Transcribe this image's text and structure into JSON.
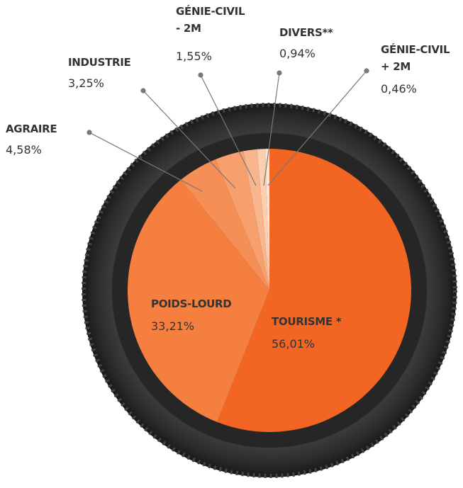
{
  "chart_data": {
    "type": "pie",
    "categories": [
      "TOURISME *",
      "POIDS-LOURD",
      "AGRAIRE",
      "INDUSTRIE",
      "GÉNIE-CIVIL\n- 2M",
      "DIVERS**",
      "GÉNIE-CIVIL\n+ 2M"
    ],
    "values": [
      56.01,
      33.21,
      4.58,
      3.25,
      1.55,
      0.94,
      0.46
    ],
    "value_labels": [
      "56,01%",
      "33,21%",
      "4,58%",
      "3,25%",
      "1,55%",
      "0,94%",
      "0,46%"
    ],
    "colors": [
      "#f26522",
      "#f47f3e",
      "#f58f55",
      "#f7a06e",
      "#f9b68e",
      "#fbcfb0",
      "#fde6d6"
    ]
  }
}
